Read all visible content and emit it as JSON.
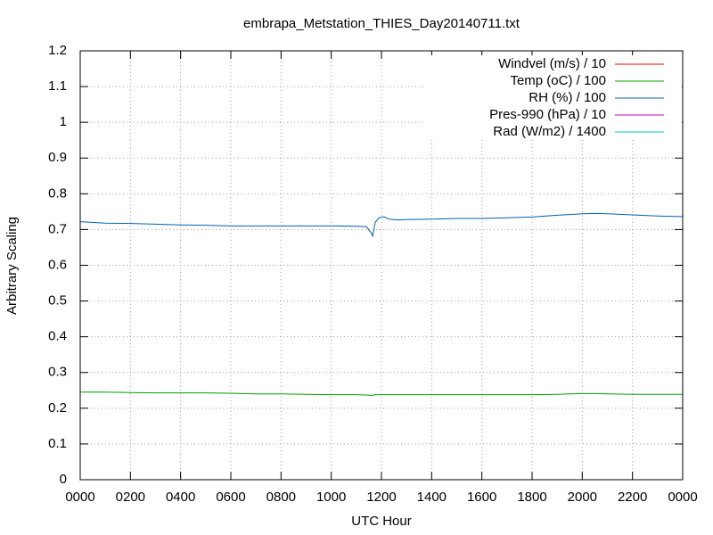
{
  "chart_data": {
    "type": "line",
    "title": "embrapa_Metstation_THIES_Day20140711.txt",
    "x_label": "UTC Hour",
    "y_label": "Arbitrary Scaling",
    "x": [
      0,
      1,
      2,
      3,
      4,
      5,
      6,
      7,
      8,
      9,
      10,
      11,
      11.4,
      11.6,
      11.65,
      11.75,
      11.9,
      12.1,
      12.3,
      12.6,
      13,
      14,
      15,
      16,
      17,
      18,
      19,
      20,
      20.5,
      21,
      22,
      23,
      24
    ],
    "series": [
      {
        "name": "Windvel (m/s) / 10",
        "color": "#ff0000",
        "values": [
          null,
          null,
          null,
          null,
          null,
          null,
          null,
          null,
          null,
          null,
          null,
          null,
          null,
          null,
          null,
          null,
          null,
          null,
          null,
          null,
          null,
          null,
          null,
          null,
          null,
          null,
          null,
          null,
          null,
          null,
          null,
          null,
          null
        ]
      },
      {
        "name": "Temp (oC) / 100",
        "color": "#00a000",
        "values": [
          0.245,
          0.245,
          0.244,
          0.243,
          0.243,
          0.243,
          0.242,
          0.24,
          0.24,
          0.239,
          0.238,
          0.238,
          0.237,
          0.236,
          0.236,
          0.238,
          0.238,
          0.238,
          0.238,
          0.238,
          0.238,
          0.238,
          0.238,
          0.238,
          0.238,
          0.238,
          0.239,
          0.241,
          0.241,
          0.24,
          0.239,
          0.239,
          0.239
        ]
      },
      {
        "name": "RH (%) / 100",
        "color": "#0060ad",
        "values": [
          0.722,
          0.718,
          0.717,
          0.715,
          0.713,
          0.712,
          0.71,
          0.71,
          0.71,
          0.71,
          0.71,
          0.709,
          0.708,
          0.69,
          0.682,
          0.72,
          0.733,
          0.736,
          0.729,
          0.727,
          0.728,
          0.729,
          0.731,
          0.731,
          0.733,
          0.735,
          0.74,
          0.744,
          0.745,
          0.744,
          0.741,
          0.738,
          0.736
        ]
      },
      {
        "name": "Pres-990 (hPa) / 10",
        "color": "#c000c0",
        "values": [
          null,
          null,
          null,
          null,
          null,
          null,
          null,
          null,
          null,
          null,
          null,
          null,
          null,
          null,
          null,
          null,
          null,
          null,
          null,
          null,
          null,
          null,
          null,
          null,
          null,
          null,
          null,
          null,
          null,
          null,
          null,
          null,
          null
        ]
      },
      {
        "name": "Rad (W/m2) / 1400",
        "color": "#00c0c0",
        "values": [
          null,
          null,
          null,
          null,
          null,
          null,
          null,
          null,
          null,
          null,
          null,
          null,
          null,
          null,
          null,
          null,
          null,
          null,
          null,
          null,
          null,
          null,
          null,
          null,
          null,
          null,
          null,
          null,
          null,
          null,
          null,
          null,
          null
        ]
      }
    ],
    "xlim": [
      0,
      24
    ],
    "xticks": [
      {
        "value": 0,
        "label": "0000"
      },
      {
        "value": 2,
        "label": "0200"
      },
      {
        "value": 4,
        "label": "0400"
      },
      {
        "value": 6,
        "label": "0600"
      },
      {
        "value": 8,
        "label": "0800"
      },
      {
        "value": 10,
        "label": "1000"
      },
      {
        "value": 12,
        "label": "1200"
      },
      {
        "value": 14,
        "label": "1400"
      },
      {
        "value": 16,
        "label": "1600"
      },
      {
        "value": 18,
        "label": "1800"
      },
      {
        "value": 20,
        "label": "2000"
      },
      {
        "value": 22,
        "label": "2200"
      },
      {
        "value": 24,
        "label": "0000"
      }
    ],
    "ylim": [
      0,
      1.2
    ],
    "yticks": [
      0,
      0.1,
      0.2,
      0.3,
      0.4,
      0.5,
      0.6,
      0.7,
      0.8,
      0.9,
      1,
      1.1,
      1.2
    ],
    "grid": true,
    "legend": "top-right"
  }
}
